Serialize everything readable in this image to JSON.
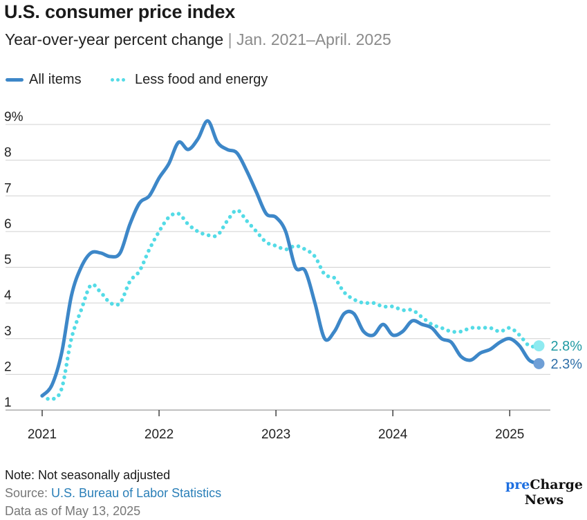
{
  "header": {
    "title": "U.S. consumer price index",
    "subtitle_main": "Year-over-year percent change",
    "subtitle_sep": "|",
    "subtitle_range": "Jan. 2021–April. 2025"
  },
  "chart_data": {
    "type": "line",
    "title": "U.S. consumer price index",
    "subtitle": "Year-over-year percent change | Jan. 2021–April. 2025",
    "xlabel": "",
    "ylabel": "",
    "x_unit": "months since Jan. 2021",
    "xlim": [
      0,
      52
    ],
    "ylim": [
      1,
      9
    ],
    "y_ticks": [
      1,
      2,
      3,
      4,
      5,
      6,
      7,
      8,
      9
    ],
    "y_tick_labels": [
      "1",
      "2",
      "3",
      "4",
      "5",
      "6",
      "7",
      "8",
      "9%"
    ],
    "x_ticks": [
      0,
      12,
      24,
      36,
      48
    ],
    "x_tick_labels": [
      "2021",
      "2022",
      "2023",
      "2024",
      "2025"
    ],
    "grid": true,
    "legend_position": "top-left",
    "series": [
      {
        "name": "All items",
        "style": "solid",
        "color": "#3d87c8",
        "end_label": "2.3%",
        "end_label_color": "#2f6fa8",
        "values": [
          1.4,
          1.7,
          2.6,
          4.2,
          5.0,
          5.4,
          5.4,
          5.3,
          5.4,
          6.2,
          6.8,
          7.0,
          7.5,
          7.9,
          8.5,
          8.3,
          8.6,
          9.1,
          8.5,
          8.3,
          8.2,
          7.7,
          7.1,
          6.5,
          6.4,
          6.0,
          5.0,
          4.9,
          4.0,
          3.0,
          3.2,
          3.7,
          3.7,
          3.2,
          3.1,
          3.4,
          3.1,
          3.2,
          3.5,
          3.4,
          3.3,
          3.0,
          2.9,
          2.5,
          2.4,
          2.6,
          2.7,
          2.9,
          3.0,
          2.8,
          2.4,
          2.3
        ]
      },
      {
        "name": "Less food and energy",
        "style": "dotted",
        "color": "#54dbe6",
        "end_label": "2.8%",
        "end_label_color": "#1f9aa3",
        "values": [
          1.4,
          1.3,
          1.6,
          3.0,
          3.8,
          4.5,
          4.3,
          4.0,
          4.0,
          4.6,
          4.9,
          5.5,
          6.0,
          6.4,
          6.5,
          6.2,
          6.0,
          5.9,
          5.9,
          6.3,
          6.6,
          6.3,
          6.0,
          5.7,
          5.6,
          5.5,
          5.6,
          5.5,
          5.3,
          4.8,
          4.7,
          4.3,
          4.1,
          4.0,
          4.0,
          3.9,
          3.9,
          3.8,
          3.8,
          3.6,
          3.4,
          3.3,
          3.2,
          3.2,
          3.3,
          3.3,
          3.3,
          3.2,
          3.3,
          3.1,
          2.8,
          2.8
        ]
      }
    ]
  },
  "footer": {
    "note": "Note: Not seasonally adjusted",
    "source_label": "Source: ",
    "source_link": "U.S. Bureau of Labor Statistics",
    "as_of": "Data as of May 13, 2025",
    "brand_line1_a": "pre",
    "brand_line1_b": "Charge",
    "brand_line2": "News"
  }
}
